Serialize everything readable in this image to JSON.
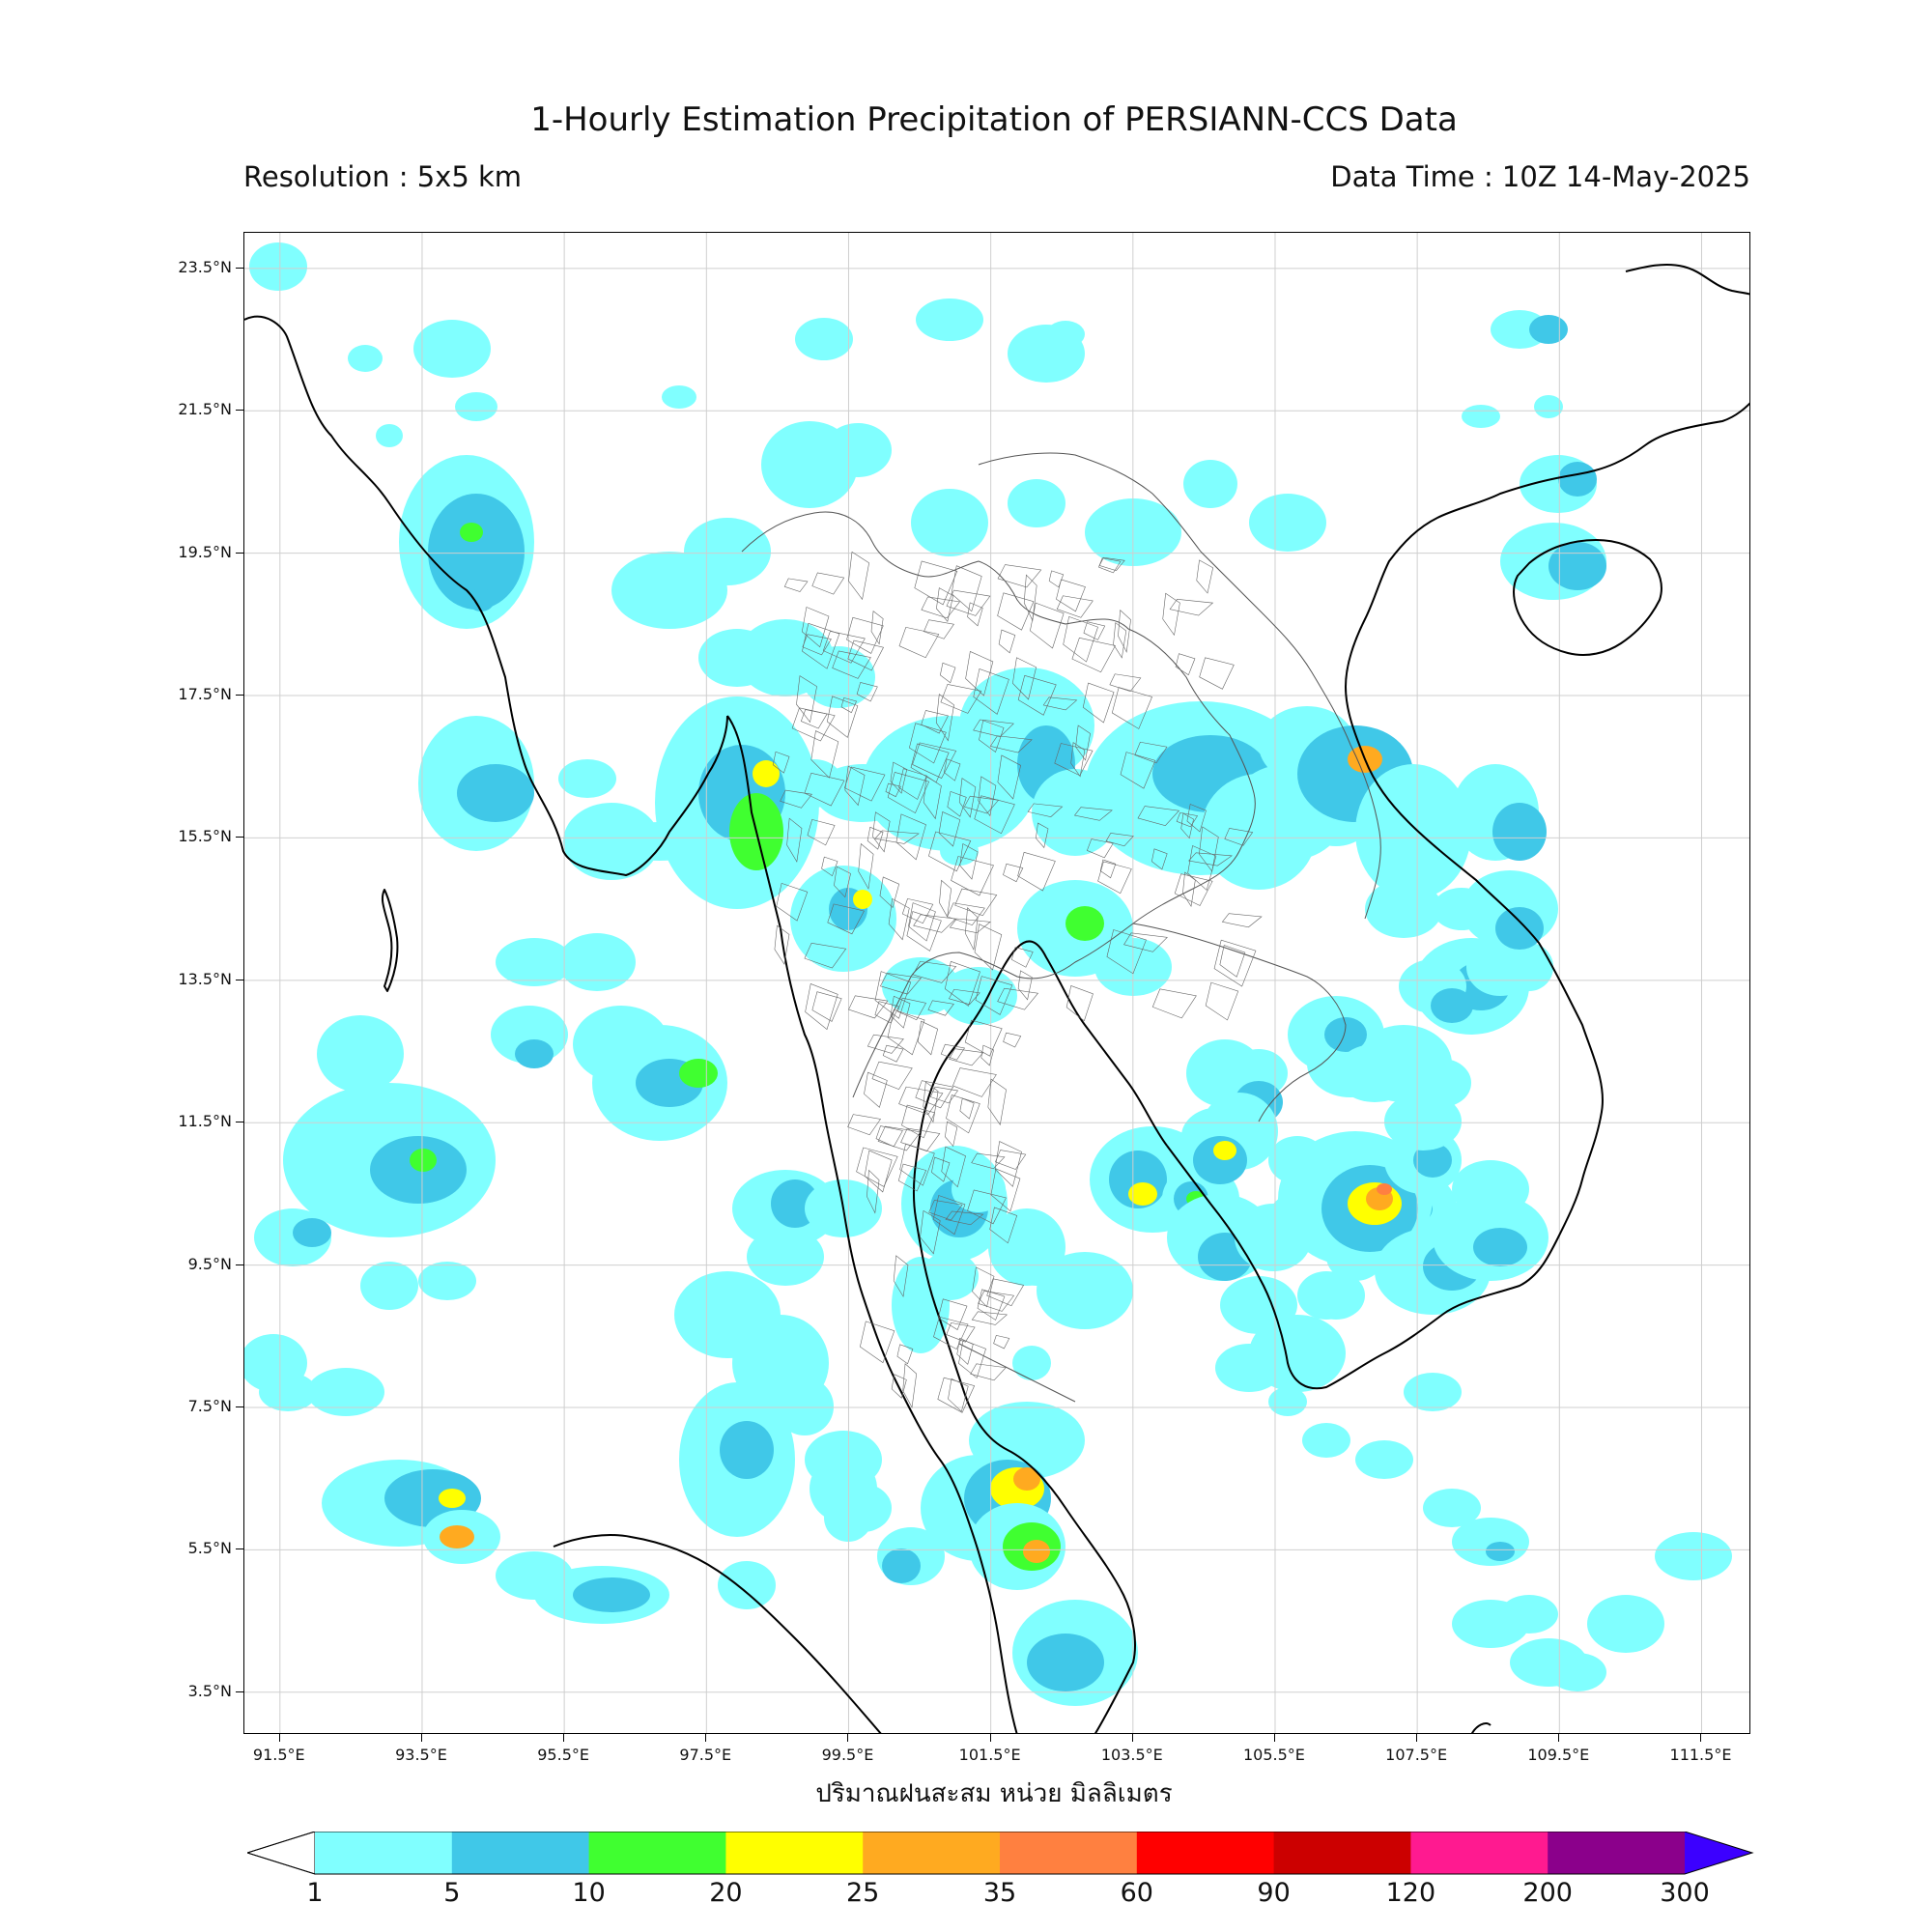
{
  "header": {
    "title": "1-Hourly Estimation Precipitation of PERSIANN-CCS Data",
    "resolution": "Resolution : 5x5 km",
    "data_time": "Data Time : 10Z 14-May-2025"
  },
  "map": {
    "lat_labels": [
      "23.5°N",
      "21.5°N",
      "19.5°N",
      "17.5°N",
      "15.5°N",
      "13.5°N",
      "11.5°N",
      "9.5°N",
      "7.5°N",
      "5.5°N",
      "3.5°N"
    ],
    "lon_labels": [
      "91.5°E",
      "93.5°E",
      "95.5°E",
      "97.5°E",
      "99.5°E",
      "101.5°E",
      "103.5°E",
      "105.5°E",
      "107.5°E",
      "109.5°E",
      "111.5°E"
    ],
    "xlabel": "ปริมาณฝนสะสม หน่วย มิลลิเมตร",
    "extent": {
      "lon_min": 91.0,
      "lon_max": 112.2,
      "lat_min": 2.9,
      "lat_max": 24.0
    },
    "colorbar": {
      "labels": [
        "1",
        "5",
        "10",
        "20",
        "25",
        "35",
        "60",
        "90",
        "120",
        "200",
        "300"
      ],
      "colors": [
        "#80ffff",
        "#40c8e8",
        "#40ff30",
        "#ffff00",
        "#ffaa20",
        "#ff8040",
        "#ff0000",
        "#cc0000",
        "#ff1a90",
        "#8b008b"
      ],
      "over_color": "#3c00ff",
      "under_color": "#ffffff"
    }
  }
}
